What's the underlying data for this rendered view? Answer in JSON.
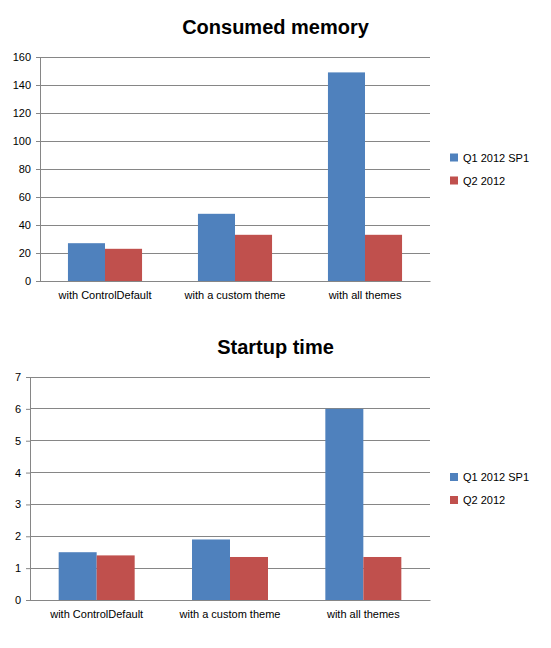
{
  "chart_data": [
    {
      "type": "bar",
      "title": "Consumed memory",
      "categories": [
        "with ControlDefault",
        "with a custom theme",
        "with all themes"
      ],
      "series": [
        {
          "name": "Q1 2012 SP1",
          "color": "#4f81bd",
          "values": [
            27,
            48,
            149
          ]
        },
        {
          "name": "Q2 2012",
          "color": "#c0504d",
          "values": [
            23,
            33,
            33
          ]
        }
      ],
      "ylim": [
        0,
        160
      ],
      "yticks": [
        0,
        20,
        40,
        60,
        80,
        100,
        120,
        140,
        160
      ],
      "grid": true,
      "legend": "right"
    },
    {
      "type": "bar",
      "title": "Startup time",
      "categories": [
        "with ControlDefault",
        "with a custom theme",
        "with all themes"
      ],
      "series": [
        {
          "name": "Q1 2012 SP1",
          "color": "#4f81bd",
          "values": [
            1.5,
            1.9,
            6
          ]
        },
        {
          "name": "Q2 2012",
          "color": "#c0504d",
          "values": [
            1.4,
            1.35,
            1.35
          ]
        }
      ],
      "ylim": [
        0,
        7
      ],
      "yticks": [
        0,
        1,
        2,
        3,
        4,
        5,
        6,
        7
      ],
      "grid": true,
      "legend": "right"
    }
  ]
}
